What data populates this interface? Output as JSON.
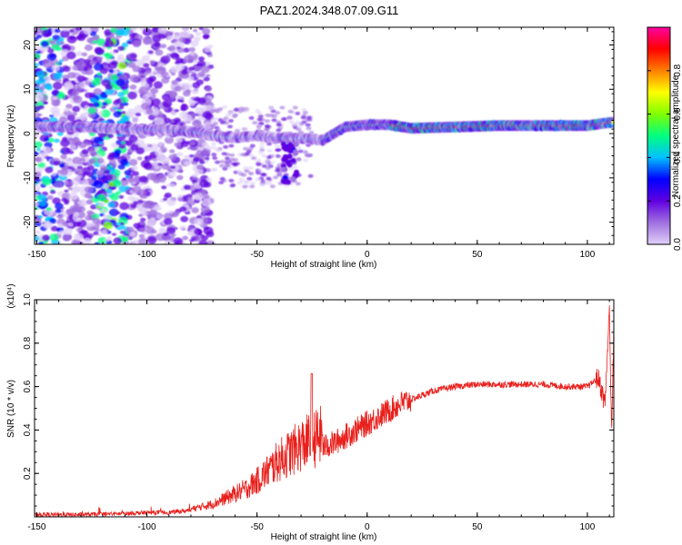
{
  "figure": {
    "title": "PAZ1.2024.348.07.09.G11"
  },
  "chart_data": [
    {
      "type": "heatmap",
      "xlabel": "Height of straight line (km)",
      "ylabel": "Frequency (Hz)",
      "xlim": [
        -151,
        112
      ],
      "ylim": [
        -25,
        24
      ],
      "x_ticks": [
        -150,
        -100,
        -50,
        0,
        50,
        100
      ],
      "y_ticks": [
        -20,
        -10,
        0,
        10,
        20
      ],
      "colorbar": {
        "label": "Normalized spectral amplitude",
        "range": [
          0,
          1
        ],
        "ticks": [
          0.0,
          0.2,
          0.4,
          0.6,
          0.8
        ],
        "colors": [
          "#e0d0f8",
          "#a070e0",
          "#6000e0",
          "#0000ff",
          "#00c0ff",
          "#00ff80",
          "#80ff00",
          "#ffff00",
          "#ff8000",
          "#ff0000",
          "#ff00a0"
        ]
      },
      "ridge_center": [
        [
          -150,
          1.5
        ],
        [
          -130,
          1.5
        ],
        [
          -110,
          1.0
        ],
        [
          -95,
          0.8
        ],
        [
          -80,
          0.5
        ],
        [
          -70,
          -0.5
        ],
        [
          -60,
          -1.0
        ],
        [
          -50,
          -0.5
        ],
        [
          -40,
          -1.0
        ],
        [
          -30,
          -1.0
        ],
        [
          -20,
          -1.5
        ],
        [
          -15,
          0
        ],
        [
          -10,
          1.5
        ],
        [
          0,
          2.0
        ],
        [
          10,
          2.0
        ],
        [
          20,
          1.2
        ],
        [
          40,
          1.5
        ],
        [
          60,
          1.8
        ],
        [
          80,
          1.8
        ],
        [
          100,
          1.8
        ],
        [
          110,
          2.5
        ]
      ]
    },
    {
      "type": "line",
      "xlabel": "Height of straight line (km)",
      "ylabel": "SNR (10 * v/v)",
      "y_multiplier": "(x10⁴)",
      "xlim": [
        -151,
        112
      ],
      "ylim": [
        0,
        1.0
      ],
      "x_ticks": [
        -150,
        -100,
        -50,
        0,
        50,
        100
      ],
      "y_ticks": [
        0.2,
        0.4,
        0.6,
        0.8,
        1.0
      ],
      "color": "#e8201c",
      "series": [
        {
          "x": [
            -151,
            -130,
            -110,
            -100,
            -90,
            -80,
            -70,
            -65,
            -60,
            -55,
            -50,
            -45,
            -40,
            -35,
            -30,
            -25,
            -20,
            -15,
            -10,
            -5,
            0,
            5,
            10,
            15,
            20,
            25,
            30,
            35,
            40,
            50,
            60,
            70,
            80,
            90,
            100,
            105,
            108,
            110,
            111,
            112
          ],
          "values": [
            0.01,
            0.01,
            0.015,
            0.02,
            0.02,
            0.03,
            0.05,
            0.07,
            0.09,
            0.11,
            0.14,
            0.18,
            0.22,
            0.25,
            0.28,
            0.3,
            0.32,
            0.34,
            0.37,
            0.4,
            0.43,
            0.46,
            0.49,
            0.52,
            0.54,
            0.56,
            0.58,
            0.59,
            0.6,
            0.61,
            0.61,
            0.61,
            0.61,
            0.6,
            0.6,
            0.64,
            0.52,
            0.95,
            0.4,
            0.85
          ]
        }
      ]
    }
  ]
}
